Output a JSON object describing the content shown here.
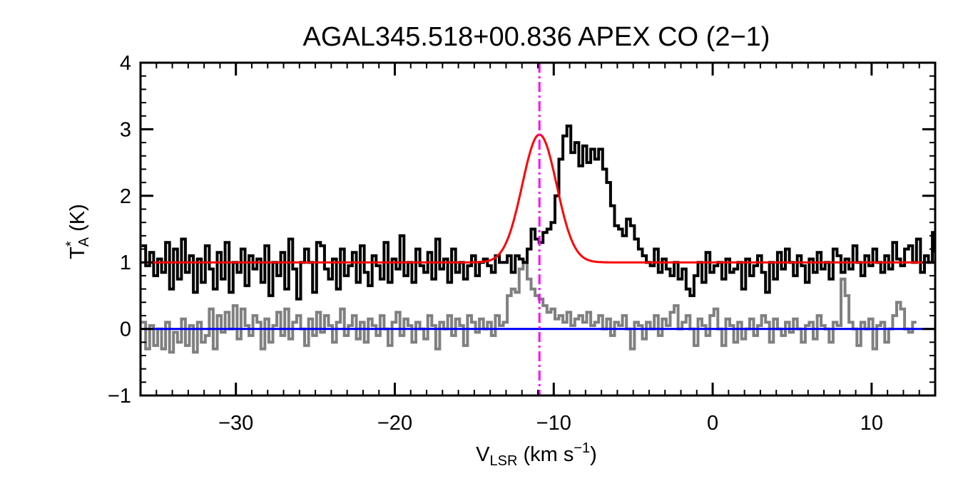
{
  "chart_data": {
    "type": "line",
    "title": "AGAL345.518+00.836  APEX CO (2−1)",
    "xlabel": {
      "main": "V",
      "sub": "LSR",
      "unit": " (km s",
      "sup": "−1",
      "close": ")"
    },
    "ylabel": {
      "main": "T",
      "sup": "*",
      "sub": "A",
      "unit": " (K)"
    },
    "xlim": [
      -36,
      14
    ],
    "ylim": [
      -1,
      4
    ],
    "xticks": [
      {
        "value": -30,
        "label": "−30"
      },
      {
        "value": -20,
        "label": "−20"
      },
      {
        "value": -10,
        "label": "−10"
      },
      {
        "value": 0,
        "label": "0"
      },
      {
        "value": 10,
        "label": "10"
      }
    ],
    "yticks": [
      {
        "value": -1,
        "label": "−1"
      },
      {
        "value": 0,
        "label": "0"
      },
      {
        "value": 1,
        "label": "1"
      },
      {
        "value": 2,
        "label": "2"
      },
      {
        "value": 3,
        "label": "3"
      },
      {
        "value": 4,
        "label": "4"
      }
    ],
    "x_minor_step": 1,
    "y_minor_step": 0.2,
    "spectrum_x_start": -35.8,
    "spectrum_x_step": 0.25,
    "series": [
      {
        "name": "spectrum",
        "color": "#000000",
        "style": "step",
        "values": [
          1.25,
          0.95,
          1.15,
          0.8,
          1.05,
          0.85,
          1.3,
          0.6,
          1.2,
          0.75,
          1.35,
          0.85,
          1.1,
          0.55,
          1.05,
          0.7,
          1.25,
          0.9,
          0.6,
          1.15,
          0.75,
          1.3,
          0.55,
          1.0,
          0.85,
          1.2,
          0.65,
          1.1,
          0.9,
          1.05,
          0.7,
          1.25,
          0.5,
          1.0,
          0.8,
          1.15,
          0.6,
          1.35,
          0.9,
          0.45,
          1.0,
          1.2,
          1.0,
          0.55,
          1.3,
          1.25,
          0.9,
          0.75,
          1.05,
          0.6,
          1.2,
          0.8,
          0.95,
          1.15,
          0.7,
          1.25,
          0.85,
          0.65,
          1.1,
          0.95,
          0.75,
          1.3,
          0.7,
          1.05,
          0.9,
          1.4,
          0.8,
          1.0,
          0.7,
          1.2,
          0.95,
          0.85,
          1.15,
          0.75,
          1.35,
          0.9,
          1.05,
          0.7,
          1.2,
          0.85,
          1.0,
          0.75,
          0.95,
          1.1,
          0.8,
          1.0,
          1.05,
          0.95,
          0.85,
          1.1,
          1.0,
          1.0,
          1.1,
          0.85,
          1.1,
          1.05,
          1.0,
          1.2,
          1.5,
          1.35,
          1.3,
          1.45,
          1.5,
          1.6,
          2.0,
          2.55,
          2.9,
          3.05,
          2.65,
          2.8,
          2.45,
          2.75,
          2.5,
          2.7,
          2.55,
          2.7,
          2.4,
          2.2,
          1.85,
          1.55,
          1.5,
          1.4,
          1.65,
          1.55,
          1.35,
          1.2,
          1.1,
          1.0,
          0.95,
          1.2,
          0.85,
          1.05,
          0.9,
          0.8,
          1.0,
          0.75,
          0.9,
          0.6,
          0.5,
          0.8,
          1.0,
          0.7,
          1.15,
          0.85,
          0.95,
          1.0,
          0.75,
          1.05,
          0.85,
          0.9,
          1.0,
          0.6,
          1.05,
          0.8,
          0.95,
          1.1,
          0.85,
          0.55,
          1.0,
          0.75,
          1.15,
          0.9,
          1.2,
          1.0,
          0.8,
          1.1,
          0.95,
          0.7,
          1.05,
          0.85,
          1.15,
          0.9,
          1.0,
          0.75,
          1.2,
          1.1,
          0.85,
          1.05,
          0.9,
          1.25,
          1.0,
          0.8,
          1.1,
          0.95,
          1.2,
          1.0,
          0.85,
          1.1,
          0.9,
          1.3,
          1.05,
          0.95,
          1.2,
          1.25,
          1.0,
          1.35,
          0.85,
          1.1,
          1.0,
          1.45,
          1.15
        ]
      },
      {
        "name": "residual",
        "color": "#808080",
        "style": "step",
        "values": [
          0.1,
          -0.3,
          0.05,
          -0.25,
          0.0,
          -0.3,
          0.1,
          -0.35,
          -0.05,
          -0.2,
          0.15,
          -0.25,
          0.05,
          -0.35,
          0.1,
          -0.2,
          -0.1,
          0.3,
          -0.3,
          0.2,
          -0.05,
          0.25,
          0.0,
          0.35,
          -0.15,
          0.3,
          0.05,
          -0.1,
          0.2,
          0.1,
          -0.3,
          0.15,
          -0.2,
          0.05,
          0.25,
          -0.1,
          0.3,
          -0.15,
          0.1,
          0.2,
          0.0,
          -0.25,
          0.15,
          -0.1,
          0.25,
          -0.05,
          0.2,
          0.05,
          -0.2,
          0.1,
          0.3,
          -0.1,
          0.05,
          0.2,
          -0.15,
          0.1,
          -0.2,
          0.15,
          0.05,
          -0.1,
          0.2,
          0.0,
          -0.25,
          0.1,
          0.25,
          -0.1,
          0.15,
          0.05,
          -0.2,
          0.1,
          0.0,
          -0.15,
          0.2,
          0.05,
          -0.3,
          0.1,
          0.0,
          0.2,
          -0.1,
          0.15,
          0.05,
          -0.25,
          0.2,
          0.1,
          -0.05,
          0.15,
          0.0,
          0.1,
          -0.1,
          0.2,
          0.05,
          0.1,
          0.5,
          0.6,
          0.55,
          0.9,
          1.0,
          0.75,
          0.6,
          0.5,
          0.45,
          0.35,
          0.25,
          0.3,
          0.15,
          0.2,
          0.1,
          0.25,
          0.05,
          0.15,
          0.2,
          0.1,
          0.25,
          0.05,
          0.1,
          0.2,
          0.0,
          0.15,
          -0.1,
          0.1,
          0.05,
          0.2,
          0.0,
          -0.3,
          0.1,
          0.05,
          -0.15,
          0.1,
          0.0,
          0.2,
          -0.1,
          0.15,
          0.05,
          0.25,
          0.35,
          0.0,
          0.1,
          0.2,
          0.0,
          -0.25,
          0.15,
          0.05,
          -0.1,
          0.2,
          0.3,
          0.0,
          -0.25,
          0.15,
          0.05,
          -0.2,
          0.1,
          -0.15,
          0.0,
          0.15,
          -0.1,
          0.05,
          0.2,
          0.1,
          -0.2,
          0.15,
          0.0,
          -0.1,
          0.1,
          -0.05,
          0.15,
          0.0,
          -0.2,
          0.05,
          0.1,
          -0.15,
          0.2,
          0.05,
          0.0,
          -0.2,
          0.1,
          0.05,
          0.75,
          0.5,
          0.1,
          0.0,
          -0.25,
          0.1,
          0.0,
          0.15,
          -0.3,
          0.05,
          0.1,
          -0.2,
          0.0,
          0.2,
          0.4,
          0.3,
          0.0,
          -0.05,
          0.1
        ]
      }
    ],
    "fit": {
      "name": "gaussian-fit",
      "color": "#ff0000",
      "baseline": 1.0,
      "amplitude": 1.92,
      "center": -10.9,
      "fwhm": 2.55
    },
    "baseline_line": {
      "name": "zero-level",
      "color": "#0000ff",
      "y": 0
    },
    "marker_line": {
      "name": "velocity-marker",
      "color": "#ff00ff",
      "x": -10.9
    }
  }
}
